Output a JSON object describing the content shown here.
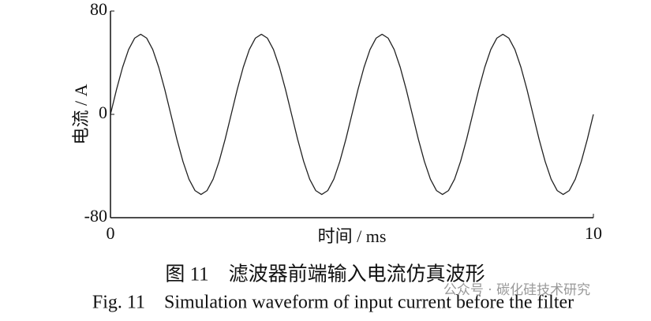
{
  "chart_data": {
    "type": "line",
    "caption_cn": "图 11　滤波器前端输入电流仿真波形",
    "caption_en": "Fig. 11　Simulation waveform of input current before the filter",
    "watermark": "公众号 · 碳化硅技术研究",
    "xlabel": "时间 / ms",
    "ylabel": "电流 / A",
    "xlim": [
      0,
      10
    ],
    "xticks": [
      0,
      10
    ],
    "ylim": [
      -80,
      80
    ],
    "yticks": [
      80,
      0,
      -80
    ],
    "x": [
      0,
      0.125,
      0.25,
      0.375,
      0.5,
      0.625,
      0.75,
      0.875,
      1,
      1.125,
      1.25,
      1.375,
      1.5,
      1.625,
      1.75,
      1.875,
      2,
      2.125,
      2.25,
      2.375,
      2.5,
      2.625,
      2.75,
      2.875,
      3,
      3.125,
      3.25,
      3.375,
      3.5,
      3.625,
      3.75,
      3.875,
      4,
      4.125,
      4.25,
      4.375,
      4.5,
      4.625,
      4.75,
      4.875,
      5,
      5.125,
      5.25,
      5.375,
      5.5,
      5.625,
      5.75,
      5.875,
      6,
      6.125,
      6.25,
      6.375,
      6.5,
      6.625,
      6.75,
      6.875,
      7,
      7.125,
      7.25,
      7.375,
      7.5,
      7.625,
      7.75,
      7.875,
      8,
      8.125,
      8.25,
      8.375,
      8.5,
      8.625,
      8.75,
      8.875,
      9,
      9.125,
      9.25,
      9.375,
      9.5,
      9.625,
      9.75,
      9.875,
      10
    ],
    "series": [
      {
        "name": "电流",
        "color": "#222222",
        "values": [
          0,
          19.2,
          36.4,
          50.2,
          59,
          62,
          59,
          50.2,
          36.4,
          19.2,
          0,
          -19.2,
          -36.4,
          -50.2,
          -59,
          -62,
          -59,
          -50.2,
          -36.4,
          -19.2,
          0,
          19.2,
          36.4,
          50.2,
          59,
          62,
          59,
          50.2,
          36.4,
          19.2,
          0,
          -19.2,
          -36.4,
          -50.2,
          -59,
          -62,
          -59,
          -50.2,
          -36.4,
          -19.2,
          0,
          19.2,
          36.4,
          50.2,
          59,
          62,
          59,
          50.2,
          36.4,
          19.2,
          0,
          -19.2,
          -36.4,
          -50.2,
          -59,
          -62,
          -59,
          -50.2,
          -36.4,
          -19.2,
          0,
          19.2,
          36.4,
          50.2,
          59,
          62,
          59,
          50.2,
          36.4,
          19.2,
          0,
          -19.2,
          -36.4,
          -50.2,
          -59,
          -62,
          -59,
          -50.2,
          -36.4,
          -19.2,
          0
        ]
      }
    ]
  }
}
